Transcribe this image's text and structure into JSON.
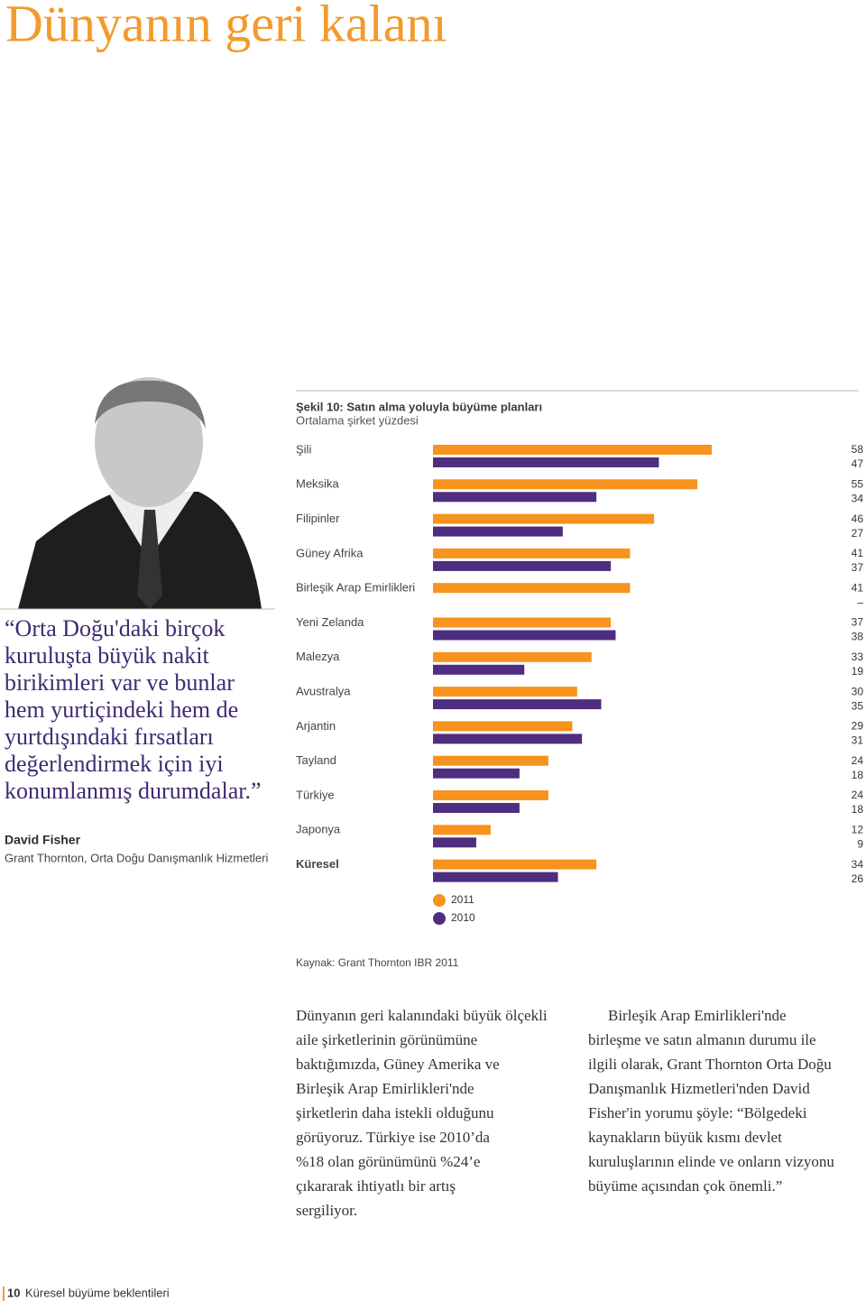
{
  "page_title": "Dünyanın geri kalanı",
  "quote": {
    "lines": [
      "“Orta Doğu'daki birçok",
      "kuruluşta büyük nakit",
      "birikimleri var ve bunlar",
      "hem yurtiçindeki hem de",
      "yurtdışındaki fırsatları",
      "değerlendirmek için iyi",
      "konumlanmış durumdalar.”"
    ]
  },
  "author": {
    "name": "David Fisher",
    "role": "Grant Thornton, Orta Doğu Danışmanlık Hizmetleri"
  },
  "chart_data": {
    "type": "bar",
    "orientation": "horizontal",
    "title": "Şekil 10: Satın alma yoluyla büyüme planları",
    "subtitle": "Ortalama şirket yüzdesi",
    "categories": [
      "Şili",
      "Meksika",
      "Filipinler",
      "Güney Afrika",
      "Birleşik Arap Emirlikleri",
      "Yeni Zelanda",
      "Malezya",
      "Avustralya",
      "Arjantin",
      "Tayland",
      "Türkiye",
      "Japonya",
      "Küresel"
    ],
    "series": [
      {
        "name": "2011",
        "color": "#f7931e",
        "values": [
          58,
          55,
          46,
          41,
          41,
          37,
          33,
          30,
          29,
          24,
          24,
          12,
          34
        ]
      },
      {
        "name": "2010",
        "color": "#4f2d7f",
        "values": [
          47,
          34,
          27,
          37,
          null,
          38,
          19,
          35,
          31,
          18,
          18,
          9,
          26
        ],
        "value_labels": [
          "47",
          "34",
          "27",
          "37",
          "–",
          "38",
          "19",
          "35",
          "31",
          "18",
          "18",
          "9",
          "26"
        ]
      }
    ]
  },
  "source": "Kaynak: Grant Thornton IBR 2011",
  "body": {
    "columns": [
      [
        "Dünyanın geri kalanındaki büyük ölçekli",
        "aile şirketlerinin görünümüne",
        "baktığımızda, Güney Amerika ve",
        "Birleşik Arap Emirlikleri'nde",
        "şirketlerin daha istekli olduğunu",
        "görüyoruz. Türkiye ise 2010’da",
        "%18 olan görünümünü %24’e",
        "çıkararak ihtiyatlı bir artış",
        "sergiliyor."
      ],
      [
        "Birleşik Arap Emirlikleri'nde",
        "birleşme ve satın almanın durumu ile",
        "ilgili olarak, Grant Thornton Orta Doğu",
        "Danışmanlık Hizmetleri'nden David",
        "Fisher'in yorumu şöyle: “Bölgedeki",
        "kaynakların büyük kısmı devlet",
        "kuruluşlarının elinde ve onların vizyonu",
        "büyüme açısından çok önemli.”"
      ]
    ]
  },
  "footer": {
    "page_number": "10",
    "text": "Küresel büyüme beklentileri"
  }
}
